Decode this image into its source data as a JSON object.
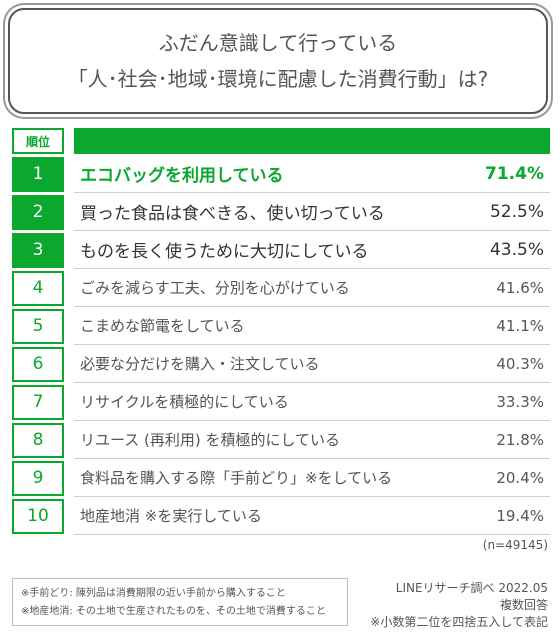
{
  "title": {
    "line1": "ふだん意識して行っている",
    "line2": "「人･社会･地域･環境に配慮した消費行動」は?"
  },
  "table": {
    "rank_header": "順位"
  },
  "chart_data": {
    "type": "table",
    "title": "ふだん意識して行っている「人･社会･地域･環境に配慮した消費行動」は?",
    "columns": [
      "順位",
      "",
      ""
    ],
    "rows": [
      {
        "rank": "1",
        "label": "エコバッグを利用している",
        "value": "71.4%"
      },
      {
        "rank": "2",
        "label": "買った食品は食べきる、使い切っている",
        "value": "52.5%"
      },
      {
        "rank": "3",
        "label": "ものを長く使うために大切にしている",
        "value": "43.5%"
      },
      {
        "rank": "4",
        "label": "ごみを減らす工夫、分別を心がけている",
        "value": "41.6%"
      },
      {
        "rank": "5",
        "label": "こまめな節電をしている",
        "value": "41.1%"
      },
      {
        "rank": "6",
        "label": "必要な分だけを購入・注文している",
        "value": "40.3%"
      },
      {
        "rank": "7",
        "label": "リサイクルを積極的にしている",
        "value": "33.3%"
      },
      {
        "rank": "8",
        "label": "リユース (再利用) を積極的にしている",
        "value": "21.8%"
      },
      {
        "rank": "9",
        "label": "食料品を購入する際「手前どり」※をしている",
        "value": "20.4%"
      },
      {
        "rank": "10",
        "label": "地産地消 ※を実行している",
        "value": "19.4%"
      }
    ],
    "sample_size": "(n=49145)"
  },
  "notes": [
    "※手前どり: 陳列品は消費期限の近い手前から購入すること",
    "※地産地消: その土地で生産されたものを、その土地で消費すること"
  ],
  "source": {
    "line1": "LINEリサーチ調べ 2022.05",
    "line2": "複数回答",
    "line3": "※小数第二位を四捨五入して表記"
  },
  "colors": {
    "accent": "#0aa82f"
  }
}
